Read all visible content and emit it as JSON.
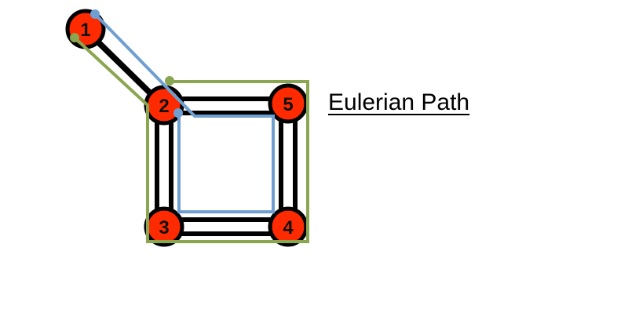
{
  "title": "Eulerian Path",
  "colors": {
    "node_fill": "#ff2a00",
    "node_stroke": "#000000",
    "edge": "#000000",
    "path_blue": "#6f9fd0",
    "path_green": "#8aa650",
    "background": "#ffffff"
  },
  "nodes": [
    {
      "id": 1,
      "label": "1"
    },
    {
      "id": 2,
      "label": "2"
    },
    {
      "id": 3,
      "label": "3"
    },
    {
      "id": 4,
      "label": "4"
    },
    {
      "id": 5,
      "label": "5"
    }
  ],
  "edges": [
    {
      "from": 1,
      "to": 2
    },
    {
      "from": 2,
      "to": 5
    },
    {
      "from": 2,
      "to": 3
    },
    {
      "from": 3,
      "to": 4
    },
    {
      "from": 4,
      "to": 5
    }
  ],
  "paths": [
    {
      "name": "blue-path",
      "color_key": "path_blue"
    },
    {
      "name": "green-path",
      "color_key": "path_green"
    }
  ]
}
